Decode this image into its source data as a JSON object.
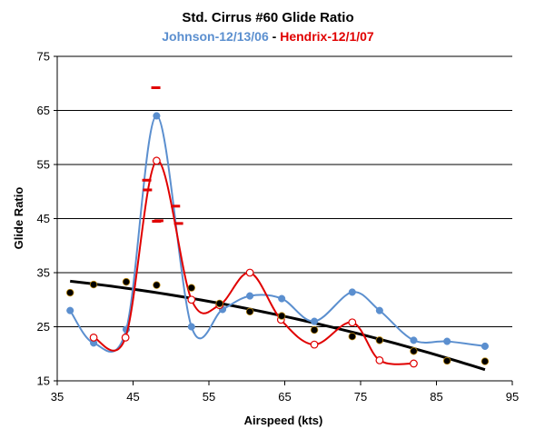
{
  "chart_data": {
    "type": "line",
    "title": "Std. Cirrus #60 Glide Ratio",
    "subtitle": [
      {
        "text": "Johnson-12/13/06",
        "color": "#5b8fcf"
      },
      {
        "text": " - ",
        "color": "#000000"
      },
      {
        "text": "Hendrix-12/1/07",
        "color": "#e00000"
      }
    ],
    "xlabel": "Airspeed (kts)",
    "ylabel": "Glide Ratio",
    "xlim": [
      35,
      95
    ],
    "ylim": [
      15,
      75
    ],
    "xticks": [
      "35",
      "45",
      "55",
      "65",
      "75",
      "85",
      "95"
    ],
    "yticks": [
      "15",
      "25",
      "35",
      "45",
      "55",
      "65",
      "75"
    ],
    "grid": "horizontal",
    "series": [
      {
        "name": "Johnson-12/13/06",
        "color": "#5b8fcf",
        "marker": "filled",
        "x": [
          36.7,
          39.8,
          44.1,
          48.1,
          52.7,
          56.8,
          60.4,
          64.6,
          68.9,
          73.9,
          77.5,
          82.0,
          86.4,
          91.4
        ],
        "y": [
          28.0,
          22.0,
          24.5,
          64.0,
          25.0,
          28.2,
          30.7,
          30.2,
          26.0,
          31.4,
          28.0,
          22.5,
          22.3,
          21.4
        ]
      },
      {
        "name": "Hendrix-12/1/07",
        "color": "#e00000",
        "marker": "open",
        "x": [
          39.8,
          44.0,
          48.1,
          52.7,
          56.4,
          60.4,
          64.5,
          68.9,
          73.9,
          77.5,
          82.0
        ],
        "y": [
          23.0,
          23.0,
          55.7,
          30.0,
          29.0,
          35.0,
          26.3,
          21.7,
          25.8,
          18.8,
          18.2
        ]
      },
      {
        "name": "",
        "color": "#000000",
        "marker": "filled",
        "trend": true,
        "x": [
          36.7,
          39.8,
          44.1,
          48.1,
          52.7,
          56.4,
          60.4,
          64.6,
          68.9,
          73.9,
          77.5,
          82.0,
          86.4,
          91.4
        ],
        "y": [
          31.3,
          32.8,
          33.3,
          32.7,
          32.2,
          29.3,
          27.8,
          27.0,
          24.4,
          23.2,
          22.5,
          20.5,
          18.7,
          18.6
        ]
      },
      {
        "name": "",
        "color": "#e00000",
        "marker": "dash",
        "x": [
          46.8,
          46.9,
          48.0,
          48.1,
          48.4,
          50.6,
          51.0
        ],
        "y": [
          52.1,
          50.3,
          69.2,
          44.5,
          44.6,
          47.3,
          44.1
        ]
      }
    ]
  }
}
